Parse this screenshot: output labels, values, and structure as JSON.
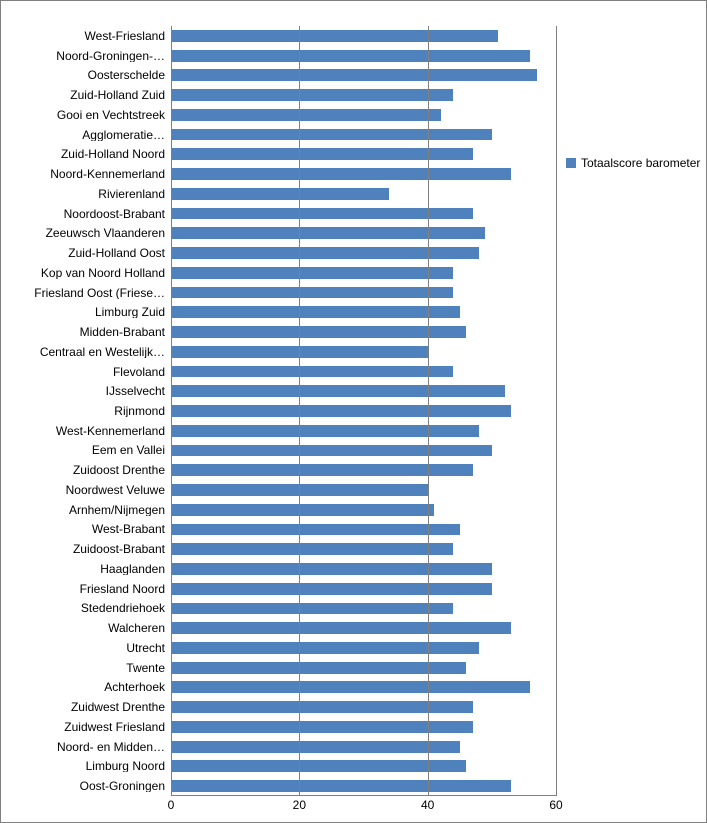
{
  "chart": {
    "type": "bar-horizontal",
    "bar_color": "#4f81bd",
    "background_color": "#ffffff",
    "grid_color": "#808080",
    "font_family": "Arial",
    "font_size_pt": 10,
    "x_axis": {
      "min": 0,
      "max": 60,
      "ticks": [
        0,
        20,
        40,
        60
      ]
    },
    "legend": {
      "label": "Totaalscore barometer",
      "swatch_color": "#4f81bd"
    },
    "categories": [
      {
        "label": "West-Friesland",
        "value": 51
      },
      {
        "label": "Noord-Groningen-…",
        "value": 56
      },
      {
        "label": "Oosterschelde",
        "value": 57
      },
      {
        "label": "Zuid-Holland Zuid",
        "value": 44
      },
      {
        "label": "Gooi en Vechtstreek",
        "value": 42
      },
      {
        "label": "Agglomeratie…",
        "value": 50
      },
      {
        "label": "Zuid-Holland Noord",
        "value": 47
      },
      {
        "label": "Noord-Kennemerland",
        "value": 53
      },
      {
        "label": "Rivierenland",
        "value": 34
      },
      {
        "label": "Noordoost-Brabant",
        "value": 47
      },
      {
        "label": "Zeeuwsch Vlaanderen",
        "value": 49
      },
      {
        "label": "Zuid-Holland Oost",
        "value": 48
      },
      {
        "label": "Kop van Noord Holland",
        "value": 44
      },
      {
        "label": "Friesland Oost (Friese…",
        "value": 44
      },
      {
        "label": "Limburg Zuid",
        "value": 45
      },
      {
        "label": "Midden-Brabant",
        "value": 46
      },
      {
        "label": "Centraal en Westelijk…",
        "value": 40
      },
      {
        "label": "Flevoland",
        "value": 44
      },
      {
        "label": "IJsselvecht",
        "value": 52
      },
      {
        "label": "Rijnmond",
        "value": 53
      },
      {
        "label": "West-Kennemerland",
        "value": 48
      },
      {
        "label": "Eem en Vallei",
        "value": 50
      },
      {
        "label": "Zuidoost Drenthe",
        "value": 47
      },
      {
        "label": "Noordwest Veluwe",
        "value": 40
      },
      {
        "label": "Arnhem/Nijmegen",
        "value": 41
      },
      {
        "label": "West-Brabant",
        "value": 45
      },
      {
        "label": "Zuidoost-Brabant",
        "value": 44
      },
      {
        "label": "Haaglanden",
        "value": 50
      },
      {
        "label": "Friesland Noord",
        "value": 50
      },
      {
        "label": "Stedendriehoek",
        "value": 44
      },
      {
        "label": "Walcheren",
        "value": 53
      },
      {
        "label": "Utrecht",
        "value": 48
      },
      {
        "label": "Twente",
        "value": 46
      },
      {
        "label": "Achterhoek",
        "value": 56
      },
      {
        "label": "Zuidwest Drenthe",
        "value": 47
      },
      {
        "label": "Zuidwest Friesland",
        "value": 47
      },
      {
        "label": "Noord- en Midden…",
        "value": 45
      },
      {
        "label": "Limburg Noord",
        "value": 46
      },
      {
        "label": "Oost-Groningen",
        "value": 53
      }
    ]
  }
}
